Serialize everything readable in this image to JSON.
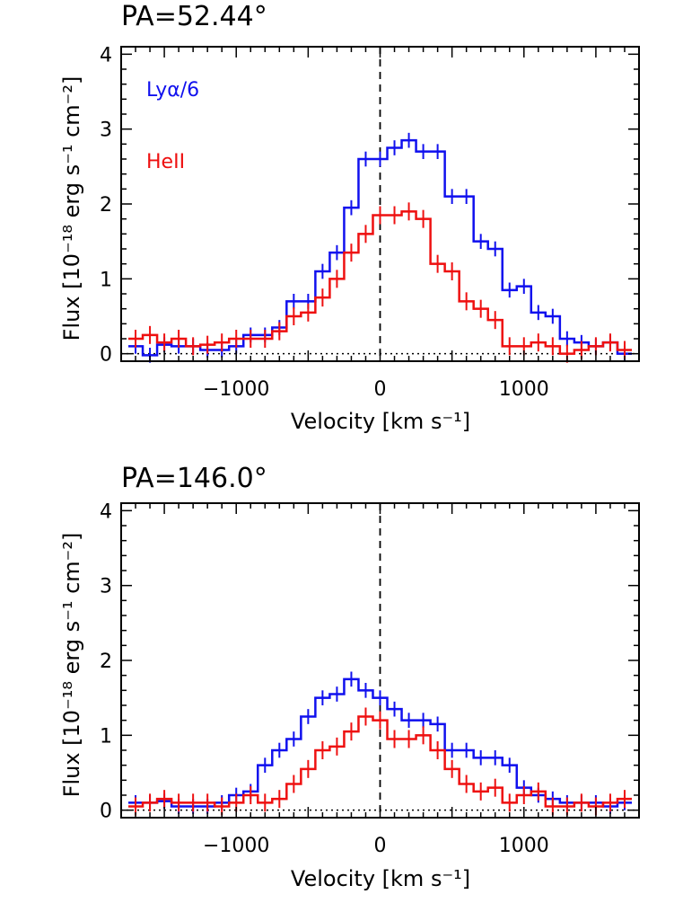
{
  "chart_data": [
    {
      "type": "line",
      "title": "PA=52.44°",
      "xlabel": "Velocity [km s⁻¹]",
      "ylabel": "Flux [10⁻¹⁸ erg s⁻¹ cm⁻²]",
      "xlim": [
        -1800,
        1800
      ],
      "ylim": [
        -0.1,
        4.1
      ],
      "xticks": [
        -1000,
        0,
        1000
      ],
      "xtick_labels": [
        "−1000",
        "0",
        "1000"
      ],
      "yticks": [
        0,
        1,
        2,
        3,
        4
      ],
      "ytick_labels": [
        "0",
        "1",
        "2",
        "3",
        "4"
      ],
      "vline_x": 0,
      "hline_y": 0,
      "legend": [
        {
          "label": "Lyα/6",
          "color": "#1010ee"
        },
        {
          "label": "HeII",
          "color": "#ee1010"
        }
      ],
      "series": [
        {
          "name": "Lyα/6",
          "color": "#1010ee",
          "x": [
            -1700,
            -1600,
            -1500,
            -1400,
            -1300,
            -1200,
            -1100,
            -1000,
            -900,
            -800,
            -700,
            -600,
            -500,
            -400,
            -300,
            -200,
            -100,
            0,
            100,
            200,
            300,
            400,
            500,
            600,
            700,
            800,
            900,
            1000,
            1100,
            1200,
            1300,
            1400,
            1500,
            1600,
            1700
          ],
          "y": [
            0.1,
            -0.02,
            0.12,
            0.1,
            0.1,
            0.05,
            0.05,
            0.1,
            0.25,
            0.25,
            0.35,
            0.7,
            0.7,
            1.1,
            1.35,
            1.95,
            2.6,
            2.6,
            2.75,
            2.85,
            2.7,
            2.7,
            2.1,
            2.1,
            1.5,
            1.4,
            0.85,
            0.9,
            0.55,
            0.5,
            0.2,
            0.15,
            0.1,
            0.15,
            0.0
          ],
          "yerr": [
            0.1,
            0.1,
            0.1,
            0.1,
            0.1,
            0.1,
            0.1,
            0.1,
            0.1,
            0.1,
            0.1,
            0.1,
            0.1,
            0.1,
            0.1,
            0.1,
            0.1,
            0.1,
            0.1,
            0.1,
            0.1,
            0.1,
            0.1,
            0.1,
            0.1,
            0.1,
            0.1,
            0.1,
            0.1,
            0.1,
            0.1,
            0.1,
            0.1,
            0.1,
            0.1
          ]
        },
        {
          "name": "HeII",
          "color": "#ee1010",
          "x": [
            -1700,
            -1600,
            -1500,
            -1400,
            -1300,
            -1200,
            -1100,
            -1000,
            -900,
            -800,
            -700,
            -600,
            -500,
            -400,
            -300,
            -200,
            -100,
            0,
            100,
            200,
            300,
            400,
            500,
            600,
            700,
            800,
            900,
            1000,
            1100,
            1200,
            1300,
            1400,
            1500,
            1600,
            1700
          ],
          "y": [
            0.2,
            0.25,
            0.15,
            0.2,
            0.1,
            0.12,
            0.15,
            0.2,
            0.2,
            0.2,
            0.3,
            0.5,
            0.55,
            0.75,
            1.0,
            1.35,
            1.6,
            1.85,
            1.85,
            1.9,
            1.8,
            1.2,
            1.1,
            0.7,
            0.6,
            0.45,
            0.1,
            0.1,
            0.15,
            0.1,
            0.0,
            0.05,
            0.1,
            0.15,
            0.05
          ],
          "yerr": [
            0.12,
            0.12,
            0.12,
            0.12,
            0.12,
            0.12,
            0.12,
            0.12,
            0.12,
            0.12,
            0.12,
            0.12,
            0.12,
            0.12,
            0.12,
            0.12,
            0.12,
            0.12,
            0.12,
            0.12,
            0.12,
            0.12,
            0.12,
            0.12,
            0.12,
            0.12,
            0.12,
            0.12,
            0.12,
            0.12,
            0.12,
            0.12,
            0.12,
            0.12,
            0.12
          ]
        }
      ]
    },
    {
      "type": "line",
      "title": "PA=146.0°",
      "xlabel": "Velocity [km s⁻¹]",
      "ylabel": "Flux [10⁻¹⁸ erg s⁻¹ cm⁻²]",
      "xlim": [
        -1800,
        1800
      ],
      "ylim": [
        -0.1,
        4.1
      ],
      "xticks": [
        -1000,
        0,
        1000
      ],
      "xtick_labels": [
        "−1000",
        "0",
        "1000"
      ],
      "yticks": [
        0,
        1,
        2,
        3,
        4
      ],
      "ytick_labels": [
        "0",
        "1",
        "2",
        "3",
        "4"
      ],
      "vline_x": 0,
      "hline_y": 0,
      "series": [
        {
          "name": "Lyα/6",
          "color": "#1010ee",
          "x": [
            -1700,
            -1600,
            -1500,
            -1400,
            -1300,
            -1200,
            -1100,
            -1000,
            -900,
            -800,
            -700,
            -600,
            -500,
            -400,
            -300,
            -200,
            -100,
            0,
            100,
            200,
            300,
            400,
            500,
            600,
            700,
            800,
            900,
            1000,
            1100,
            1200,
            1300,
            1400,
            1500,
            1600,
            1700
          ],
          "y": [
            0.1,
            0.1,
            0.12,
            0.05,
            0.05,
            0.05,
            0.1,
            0.2,
            0.25,
            0.6,
            0.8,
            0.95,
            1.25,
            1.5,
            1.55,
            1.75,
            1.6,
            1.5,
            1.35,
            1.2,
            1.2,
            1.15,
            0.8,
            0.8,
            0.7,
            0.7,
            0.6,
            0.3,
            0.2,
            0.15,
            0.1,
            0.1,
            0.1,
            0.05,
            0.1
          ],
          "yerr": [
            0.1,
            0.1,
            0.1,
            0.1,
            0.1,
            0.1,
            0.1,
            0.1,
            0.1,
            0.1,
            0.1,
            0.1,
            0.1,
            0.1,
            0.1,
            0.1,
            0.1,
            0.1,
            0.1,
            0.1,
            0.1,
            0.1,
            0.1,
            0.1,
            0.1,
            0.1,
            0.1,
            0.1,
            0.1,
            0.1,
            0.1,
            0.1,
            0.1,
            0.1,
            0.1
          ]
        },
        {
          "name": "HeII",
          "color": "#ee1010",
          "x": [
            -1700,
            -1600,
            -1500,
            -1400,
            -1300,
            -1200,
            -1100,
            -1000,
            -900,
            -800,
            -700,
            -600,
            -500,
            -400,
            -300,
            -200,
            -100,
            0,
            100,
            200,
            300,
            400,
            500,
            600,
            700,
            800,
            900,
            1000,
            1100,
            1200,
            1300,
            1400,
            1500,
            1600,
            1700
          ],
          "y": [
            0.05,
            0.1,
            0.15,
            0.1,
            0.1,
            0.1,
            0.05,
            0.1,
            0.2,
            0.1,
            0.15,
            0.35,
            0.55,
            0.8,
            0.85,
            1.05,
            1.25,
            1.2,
            0.95,
            0.95,
            1.0,
            0.8,
            0.55,
            0.35,
            0.25,
            0.3,
            0.1,
            0.2,
            0.25,
            0.05,
            0.05,
            0.1,
            0.05,
            0.1,
            0.15
          ],
          "yerr": [
            0.12,
            0.12,
            0.12,
            0.12,
            0.12,
            0.12,
            0.12,
            0.12,
            0.12,
            0.12,
            0.12,
            0.12,
            0.12,
            0.12,
            0.12,
            0.12,
            0.12,
            0.12,
            0.12,
            0.12,
            0.12,
            0.12,
            0.12,
            0.12,
            0.12,
            0.12,
            0.12,
            0.12,
            0.12,
            0.12,
            0.12,
            0.12,
            0.12,
            0.12,
            0.12
          ]
        }
      ]
    }
  ]
}
